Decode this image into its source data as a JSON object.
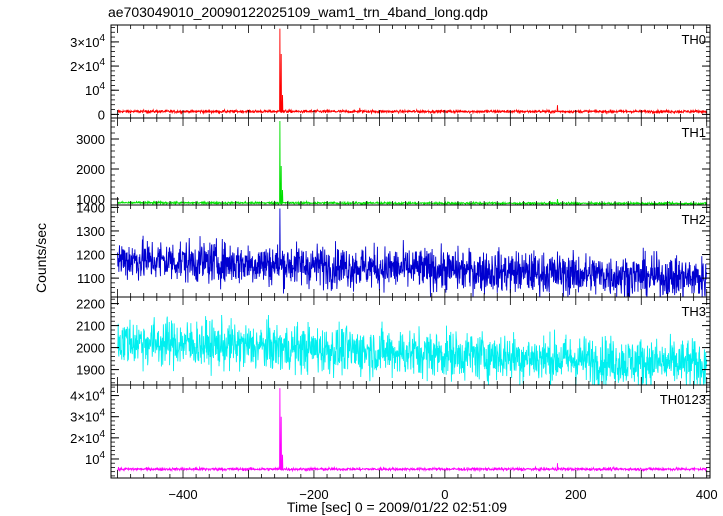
{
  "chart_data": {
    "type": "line",
    "title": "ae703049010_20090122025109_wam1_trn_4band_long.qdp",
    "xlabel": "Time [sec] 0 = 2009/01/22 02:51:09",
    "ylabel": "Counts/sec",
    "xlim": [
      -510,
      405
    ],
    "x_ticks": [
      -400,
      -200,
      0,
      200,
      400
    ],
    "x_tick_labels": [
      "−400",
      "−200",
      "0",
      "200",
      "400"
    ],
    "x_range_data": [
      -500,
      400
    ],
    "grid": false,
    "panels": [
      {
        "name": "TH0",
        "color": "#ff0000",
        "ylim": [
          -1500,
          37000
        ],
        "y_ticks": [
          0,
          10000,
          20000,
          30000
        ],
        "y_tick_labels": [
          "0",
          "10^4",
          "2×10^4",
          "3×10^4"
        ],
        "baseline": 1200,
        "noise": 300,
        "trend": 0,
        "spikes": [
          {
            "x": -252,
            "value": 35500
          },
          {
            "x": -250,
            "value": 25000
          },
          {
            "x": -248,
            "value": 8000
          },
          {
            "x": -130,
            "value": 2700
          },
          {
            "x": 172,
            "value": 3800
          }
        ]
      },
      {
        "name": "TH1",
        "color": "#00e000",
        "ylim": [
          800,
          3700
        ],
        "y_ticks": [
          1000,
          2000,
          3000
        ],
        "y_tick_labels": [
          "1000",
          "2000",
          "3000"
        ],
        "baseline": 875,
        "noise": 18,
        "trend": -0.03,
        "spikes": [
          {
            "x": -252,
            "value": 3600
          },
          {
            "x": -250,
            "value": 2100
          },
          {
            "x": -248,
            "value": 1300
          },
          {
            "x": 172,
            "value": 1000
          }
        ]
      },
      {
        "name": "TH2",
        "color": "#0000d0",
        "ylim": [
          1020,
          1410
        ],
        "y_ticks": [
          1100,
          1200,
          1300,
          1400
        ],
        "y_tick_labels": [
          "1100",
          "1200",
          "1300",
          "1400"
        ],
        "baseline": 1180,
        "noise": 45,
        "trend": -0.09,
        "spikes": [
          {
            "x": -252,
            "value": 1395
          }
        ]
      },
      {
        "name": "TH3",
        "color": "#00f0f0",
        "ylim": [
          1830,
          2230
        ],
        "y_ticks": [
          1900,
          2000,
          2100,
          2200
        ],
        "y_tick_labels": [
          "1900",
          "2000",
          "2100",
          "2200"
        ],
        "baseline": 2030,
        "noise": 55,
        "trend": -0.12,
        "spikes": []
      },
      {
        "name": "TH0123",
        "color": "#ff00ff",
        "ylim": [
          1000,
          45000
        ],
        "y_ticks": [
          10000,
          20000,
          30000,
          40000
        ],
        "y_tick_labels": [
          "10^4",
          "2×10^4",
          "3×10^4",
          "4×10^4"
        ],
        "baseline": 5200,
        "noise": 350,
        "trend": 0,
        "spikes": [
          {
            "x": -252,
            "value": 43500
          },
          {
            "x": -250,
            "value": 30000
          },
          {
            "x": -248,
            "value": 12000
          },
          {
            "x": 172,
            "value": 8000
          }
        ]
      }
    ]
  }
}
